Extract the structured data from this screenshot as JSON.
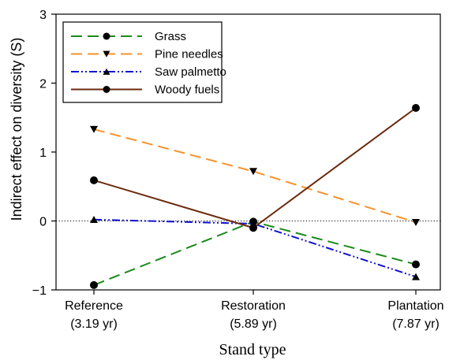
{
  "chart_data": {
    "type": "line",
    "title": "",
    "xlabel": "Stand type",
    "ylabel": "Indirect effect on diversity (S)",
    "categories": [
      {
        "line1": "Reference",
        "line2": "(3.19 yr)"
      },
      {
        "line1": "Restoration",
        "line2": "(5.89 yr)"
      },
      {
        "line1": "Plantation",
        "line2": "(7.87 yr)"
      }
    ],
    "ylim": [
      -1,
      3
    ],
    "yticks": [
      {
        "value": -1,
        "label": "−1"
      },
      {
        "value": 0,
        "label": "0"
      },
      {
        "value": 1,
        "label": "1"
      },
      {
        "value": 2,
        "label": "2"
      },
      {
        "value": 3,
        "label": "3"
      }
    ],
    "reference_line": {
      "y": 0,
      "style": "dotted"
    },
    "legend_position": "top-left",
    "grid": false,
    "series": [
      {
        "name": "Grass",
        "values": [
          -0.93,
          -0.01,
          -0.63
        ],
        "color": "#1a8a1a",
        "dash": "dashed",
        "marker": "circle"
      },
      {
        "name": "Pine needles",
        "values": [
          1.33,
          0.72,
          -0.02
        ],
        "color": "#f5922a",
        "dash": "dashed",
        "marker": "triangle-down"
      },
      {
        "name": "Saw palmetto",
        "values": [
          0.02,
          -0.04,
          -0.81
        ],
        "color": "#1010d0",
        "dash": "dash-dot-dot",
        "marker": "triangle-up"
      },
      {
        "name": "Woody fuels",
        "values": [
          0.59,
          -0.1,
          1.64
        ],
        "color": "#6b2a0e",
        "dash": "solid",
        "marker": "circle"
      }
    ]
  }
}
